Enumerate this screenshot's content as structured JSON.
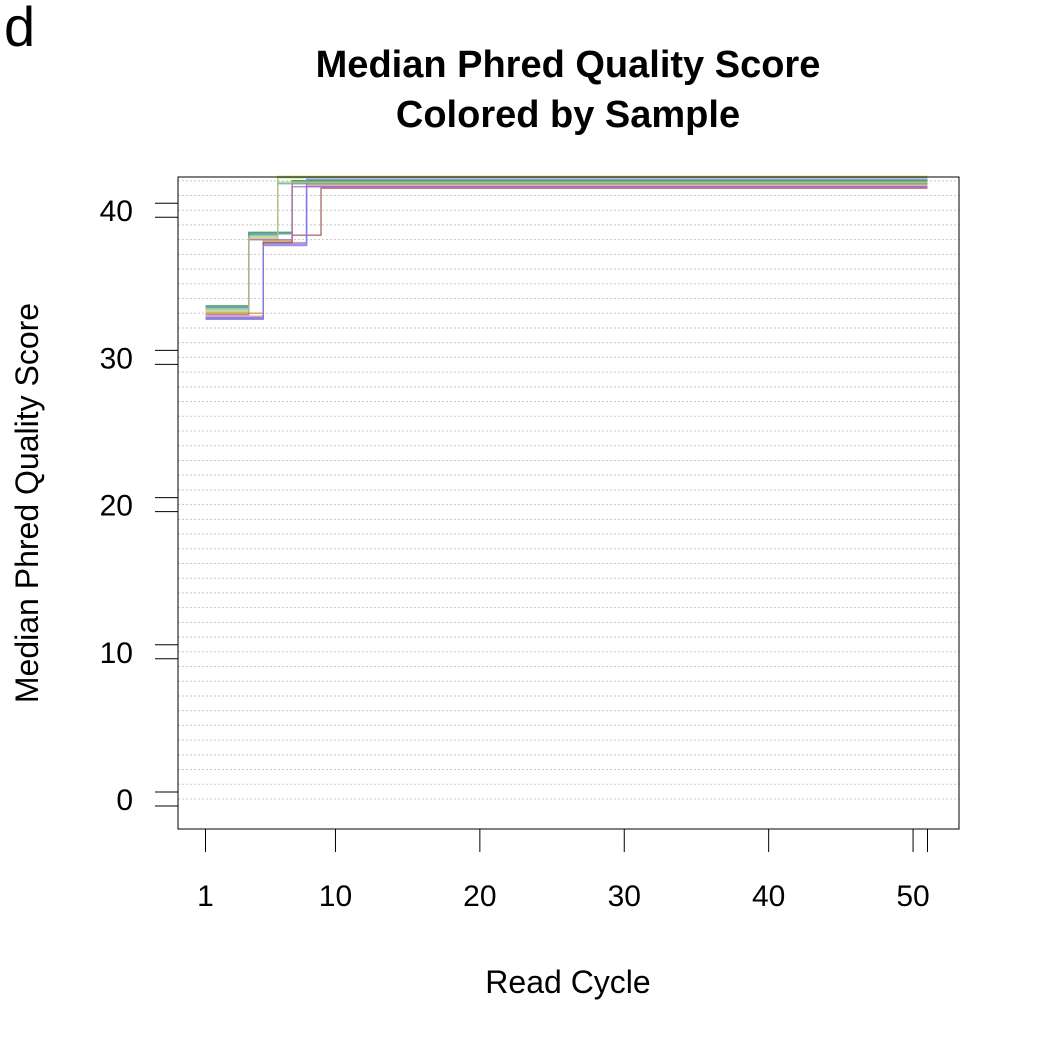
{
  "panel_label": "d",
  "chart_data": {
    "type": "line",
    "title": "Median Phred Quality Score",
    "subtitle": "Colored by Sample",
    "xlabel": "Read Cycle",
    "ylabel": "Median Phred Quality Score",
    "xlim": [
      1,
      51
    ],
    "ylim": [
      0,
      42
    ],
    "x_ticks": [
      1,
      10,
      20,
      30,
      40,
      50
    ],
    "x_minor_ticks": [
      50,
      51
    ],
    "y_ticks": [
      0,
      10,
      20,
      30,
      40
    ],
    "grid": "horizontal dotted",
    "legend": "none",
    "series": [
      {
        "color": "#3a9a3a",
        "values": [
          33.5,
          33.5,
          38.5,
          38.5,
          38.5,
          42.0,
          42.0,
          42.0,
          42.0,
          42.0,
          42.0,
          42.0
        ]
      },
      {
        "color": "#4f8fb5",
        "values": [
          33.4,
          33.4,
          38.4,
          38.4,
          38.4,
          41.9,
          41.9,
          41.9,
          41.9,
          41.9,
          41.9,
          41.9
        ]
      },
      {
        "color": "#c8d36a",
        "values": [
          33.2,
          33.2,
          38.2,
          38.2,
          42.3,
          42.3,
          42.3,
          42.3,
          42.3,
          42.3,
          42.3,
          42.3
        ]
      },
      {
        "color": "#9ad36a",
        "values": [
          33.0,
          33.0,
          38.0,
          38.0,
          42.2,
          42.2,
          42.2,
          42.2,
          42.2,
          42.2,
          42.2,
          42.2
        ]
      },
      {
        "color": "#d0a040",
        "values": [
          33.0,
          33.0,
          33.0,
          37.9,
          37.9,
          41.8,
          41.8,
          41.8,
          41.8,
          41.8,
          41.8,
          41.8
        ]
      },
      {
        "color": "#e08a8a",
        "values": [
          32.8,
          32.8,
          32.8,
          37.8,
          37.8,
          37.8,
          41.7,
          41.7,
          41.7,
          41.7,
          41.7,
          41.7
        ]
      },
      {
        "color": "#6a6ae0",
        "values": [
          32.6,
          32.6,
          32.6,
          37.7,
          37.7,
          37.7,
          41.6,
          41.6,
          41.6,
          41.6,
          41.6,
          41.6
        ]
      },
      {
        "color": "#a05a5a",
        "values": [
          32.7,
          32.7,
          32.7,
          37.8,
          37.8,
          38.3,
          38.3,
          41.5,
          41.5,
          41.5,
          41.5,
          41.5
        ]
      },
      {
        "color": "#60b0b0",
        "values": [
          33.3,
          33.3,
          38.3,
          38.3,
          41.8,
          41.8,
          41.8,
          41.8,
          41.8,
          41.8,
          41.8,
          41.8
        ]
      },
      {
        "color": "#b070c0",
        "values": [
          32.9,
          32.9,
          38.0,
          38.0,
          38.0,
          41.6,
          41.6,
          41.6,
          41.6,
          41.6,
          41.6,
          41.6
        ]
      },
      {
        "color": "#8080ff",
        "values": [
          32.7,
          32.7,
          32.7,
          37.6,
          37.6,
          37.6,
          42.1,
          42.1,
          42.1,
          42.1,
          42.1,
          42.1
        ]
      },
      {
        "color": "#c0c080",
        "values": [
          33.1,
          33.1,
          38.1,
          38.1,
          41.9,
          41.9,
          41.9,
          41.9,
          41.9,
          41.9,
          41.9,
          41.9
        ]
      }
    ],
    "x": [
      1,
      3,
      4,
      5,
      6,
      7,
      8,
      9,
      10,
      20,
      40,
      51
    ]
  }
}
